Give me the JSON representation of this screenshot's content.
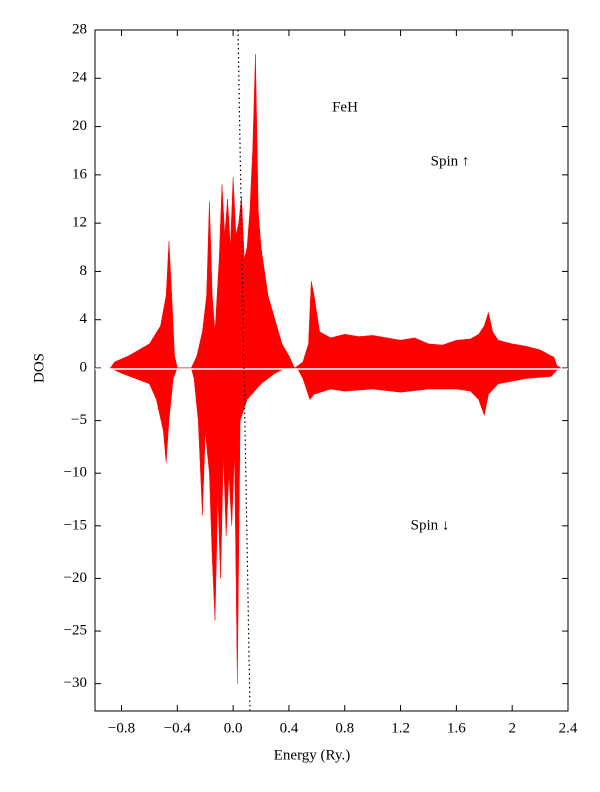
{
  "chart_data": [
    {
      "type": "area",
      "annotations": [
        "FeH",
        "Spin ↑"
      ],
      "ylabel": "DOS",
      "xlim": [
        -0.99,
        2.4
      ],
      "ylim": [
        0,
        28
      ],
      "yticks": [
        0,
        4,
        8,
        12,
        16,
        20,
        24,
        28
      ],
      "x": [
        -0.88,
        -0.85,
        -0.75,
        -0.6,
        -0.52,
        -0.48,
        -0.46,
        -0.44,
        -0.42,
        -0.4,
        -0.3,
        -0.26,
        -0.22,
        -0.19,
        -0.17,
        -0.15,
        -0.13,
        -0.1,
        -0.08,
        -0.06,
        -0.04,
        -0.02,
        0.0,
        0.02,
        0.04,
        0.06,
        0.08,
        0.1,
        0.12,
        0.14,
        0.16,
        0.18,
        0.2,
        0.25,
        0.3,
        0.35,
        0.4,
        0.44,
        0.5,
        0.54,
        0.56,
        0.58,
        0.62,
        0.7,
        0.8,
        0.9,
        1.0,
        1.1,
        1.2,
        1.3,
        1.4,
        1.5,
        1.6,
        1.7,
        1.76,
        1.8,
        1.83,
        1.86,
        1.9,
        2.0,
        2.1,
        2.2,
        2.28,
        2.3,
        2.32,
        2.35
      ],
      "series": [
        {
          "color": "#ff0000",
          "values": [
            0,
            0.5,
            1,
            2,
            3.5,
            6,
            10.5,
            6,
            1,
            0,
            0,
            1,
            3,
            6,
            13.8,
            6,
            3,
            9,
            15.2,
            11,
            14,
            10,
            15.8,
            11,
            12,
            14.2,
            9,
            10,
            13,
            18,
            26,
            13,
            10,
            6,
            4,
            2,
            1,
            0,
            0.5,
            2,
            7.2,
            6,
            3,
            2.5,
            2.8,
            2.6,
            2.7,
            2.5,
            2.3,
            2.5,
            2,
            1.9,
            2.3,
            2.4,
            2.8,
            3.5,
            4.6,
            3,
            2.3,
            2,
            1.8,
            1.5,
            1,
            0.9,
            0.2,
            0
          ]
        }
      ]
    },
    {
      "type": "area",
      "annotations": [
        "Spin ↓"
      ],
      "xlabel": "Energy (Ry.)",
      "xlim": [
        -0.99,
        2.4
      ],
      "xticks": [
        {
          "value": -0.8,
          "label": "−0.8"
        },
        {
          "value": -0.4,
          "label": "−0.4"
        },
        {
          "value": 0,
          "label": "0.0"
        },
        0.4,
        0.8,
        1.2,
        1.6,
        2.0,
        2.4
      ],
      "ylim": [
        -32.6,
        0
      ],
      "yticks": [
        {
          "value": -5,
          "label": "−5"
        },
        {
          "value": -10,
          "label": "−10"
        },
        {
          "value": -15,
          "label": "−15"
        },
        {
          "value": -20,
          "label": "−20"
        },
        {
          "value": -25,
          "label": "−25"
        },
        {
          "value": -30,
          "label": "−30"
        }
      ],
      "x": [
        -0.88,
        -0.8,
        -0.6,
        -0.55,
        -0.5,
        -0.48,
        -0.46,
        -0.43,
        -0.4,
        -0.3,
        -0.28,
        -0.25,
        -0.22,
        -0.2,
        -0.17,
        -0.15,
        -0.13,
        -0.11,
        -0.09,
        -0.07,
        -0.05,
        -0.03,
        -0.01,
        0.01,
        0.03,
        0.05,
        0.1,
        0.2,
        0.3,
        0.38,
        0.46,
        0.5,
        0.55,
        0.58,
        0.7,
        0.8,
        1.0,
        1.2,
        1.4,
        1.6,
        1.7,
        1.76,
        1.8,
        1.83,
        1.9,
        2.1,
        2.28,
        2.32,
        2.35
      ],
      "series": [
        {
          "color": "#ff0000",
          "values": [
            0,
            -0.5,
            -1.5,
            -3,
            -6,
            -9,
            -5,
            -1,
            0,
            0,
            -1,
            -5,
            -14,
            -6,
            -10,
            -18,
            -24,
            -12,
            -20,
            -8,
            -16,
            -10,
            -15,
            -8,
            -30,
            -5,
            -3,
            -1.5,
            -0.5,
            0,
            0,
            -1,
            -3,
            -2.5,
            -2,
            -2.2,
            -2,
            -2.3,
            -2,
            -2,
            -2.2,
            -3,
            -4.5,
            -2.5,
            -1.5,
            -1,
            -0.8,
            -0.2,
            0
          ]
        }
      ]
    }
  ]
}
